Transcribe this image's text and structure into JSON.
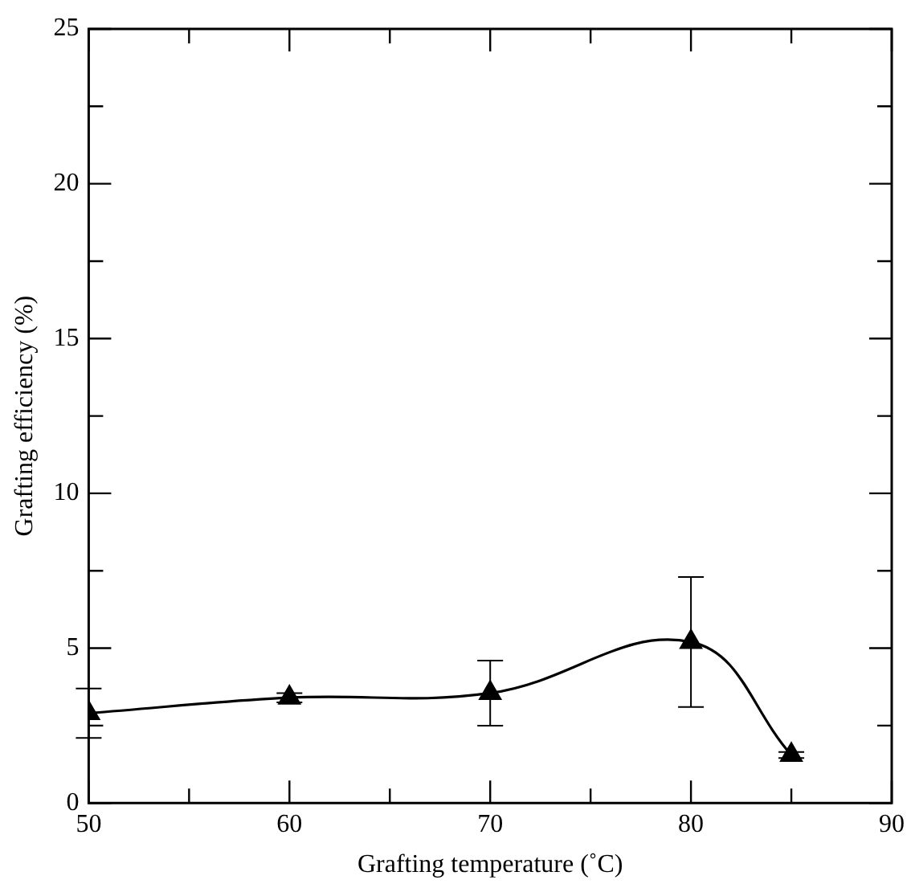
{
  "chart_data": {
    "type": "line",
    "xlabel": "Grafting temperature (˚C)",
    "ylabel": "Grafting efficiency (%)",
    "x": [
      50,
      60,
      70,
      80,
      85
    ],
    "series": [
      {
        "color": "#000000",
        "values": [
          2.9,
          3.4,
          3.55,
          5.2,
          1.55
        ],
        "errors": [
          0.8,
          0.15,
          1.05,
          2.1,
          0.1
        ]
      }
    ],
    "xlim": [
      50,
      90
    ],
    "xticks": [
      50,
      {
        "value": 55,
        "label": null
      },
      60,
      {
        "value": 65,
        "label": null
      },
      70,
      {
        "value": 75,
        "label": null
      },
      80,
      {
        "value": 85,
        "label": null
      },
      90
    ],
    "ylim": [
      0,
      25
    ],
    "yticks": [
      0,
      {
        "value": 2.5,
        "label": null
      },
      5,
      {
        "value": 7.5,
        "label": null
      },
      10,
      {
        "value": 12.5,
        "label": null
      },
      15,
      {
        "value": 17.5,
        "label": null
      },
      20,
      {
        "value": 22.5,
        "label": null
      },
      25
    ],
    "grid": false,
    "legend": false,
    "marker": "triangle",
    "line_style": "solid"
  }
}
